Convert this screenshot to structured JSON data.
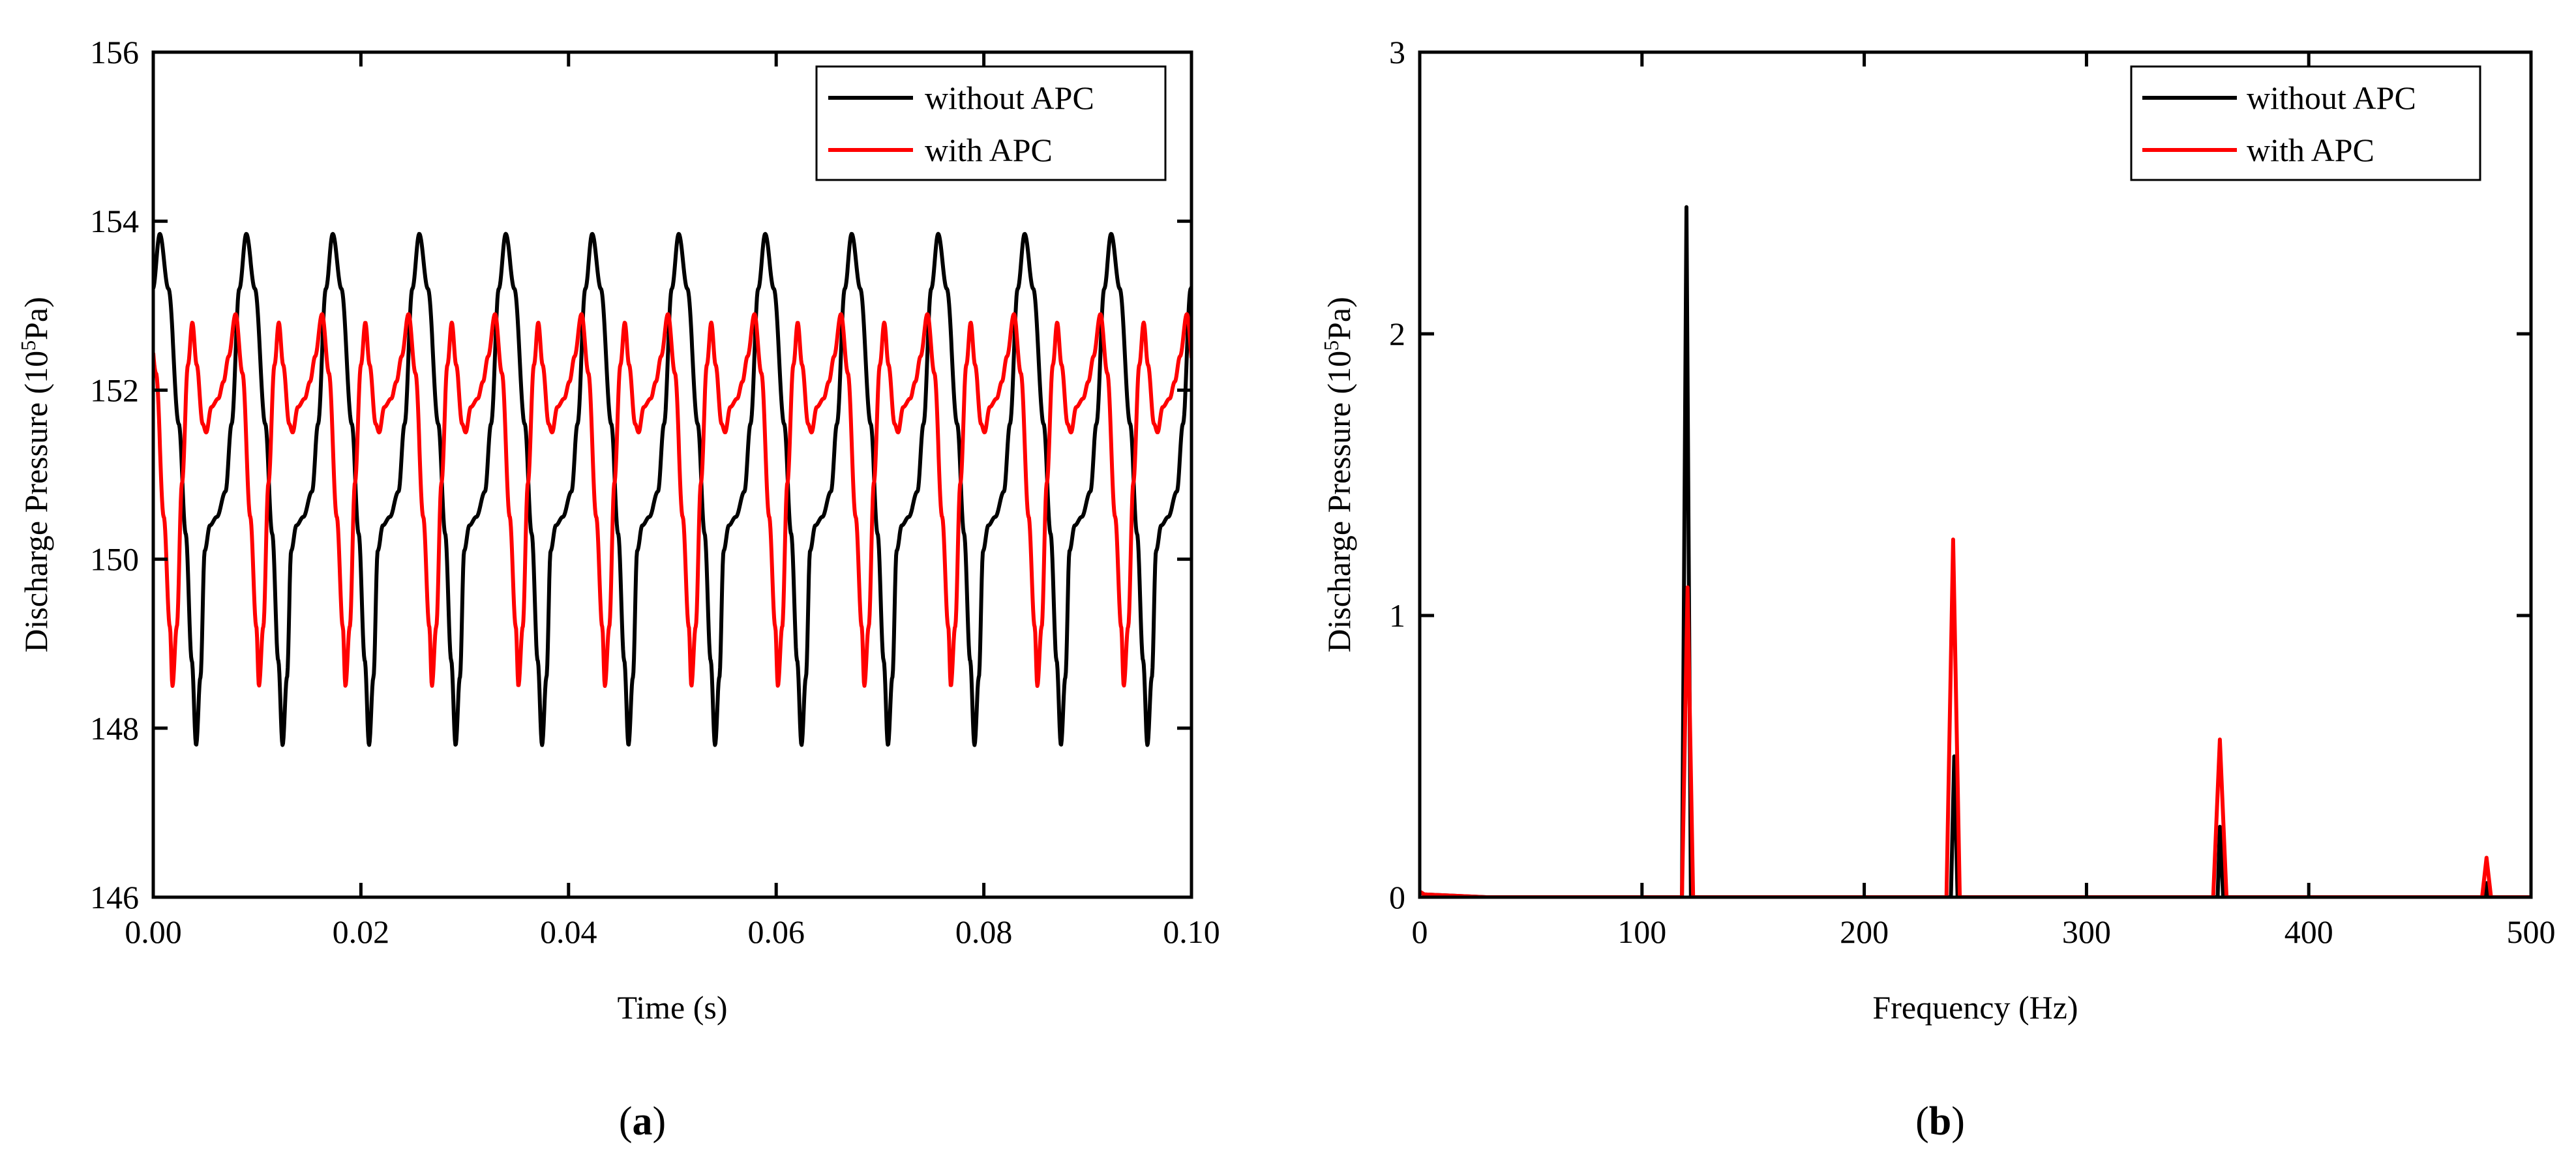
{
  "figure": {
    "colors": {
      "axis": "#000000",
      "series_without": "#000000",
      "series_with": "#ff0000"
    }
  },
  "chart_data": [
    {
      "id": "a",
      "type": "line",
      "caption": "(a)",
      "caption_letter": "a",
      "xlabel": "Time (s)",
      "ylabel": "Discharge Pressure (10⁵Pa)",
      "xlim": [
        0,
        0.1
      ],
      "ylim": [
        146,
        156
      ],
      "xticks": [
        0,
        0.02,
        0.04,
        0.06,
        0.08,
        0.1
      ],
      "xtick_labels": [
        "0.00",
        "0.02",
        "0.04",
        "0.06",
        "0.08",
        "0.10"
      ],
      "yticks": [
        146,
        148,
        150,
        152,
        154,
        156
      ],
      "ytick_labels": [
        "146",
        "148",
        "150",
        "152",
        "154",
        "156"
      ],
      "legend_position": "top-right",
      "series": [
        {
          "name": "without APC",
          "color": "#000000",
          "period": 0.00833,
          "phase": 0.0077,
          "waveform": [
            [
              0,
              153.85
            ],
            [
              0.1,
              153.2
            ],
            [
              0.22,
              151.6
            ],
            [
              0.3,
              150.3
            ],
            [
              0.37,
              148.8
            ],
            [
              0.42,
              147.8
            ],
            [
              0.47,
              148.6
            ],
            [
              0.52,
              150.1
            ],
            [
              0.58,
              150.4
            ],
            [
              0.66,
              150.5
            ],
            [
              0.76,
              150.8
            ],
            [
              0.83,
              151.6
            ],
            [
              0.92,
              153.2
            ],
            [
              1.0,
              153.85
            ]
          ]
        },
        {
          "name": "with APC",
          "color": "#ff0000",
          "period": 0.00833,
          "phase": 0.0004,
          "waveform": [
            [
              0,
              152.9
            ],
            [
              0.08,
              152.2
            ],
            [
              0.17,
              150.5
            ],
            [
              0.24,
              149.2
            ],
            [
              0.27,
              148.5
            ],
            [
              0.32,
              149.2
            ],
            [
              0.38,
              150.9
            ],
            [
              0.45,
              152.3
            ],
            [
              0.5,
              152.8
            ],
            [
              0.55,
              152.3
            ],
            [
              0.62,
              151.6
            ],
            [
              0.66,
              151.5
            ],
            [
              0.72,
              151.8
            ],
            [
              0.8,
              151.9
            ],
            [
              0.86,
              152.1
            ],
            [
              0.92,
              152.4
            ],
            [
              1.0,
              152.9
            ]
          ]
        }
      ]
    },
    {
      "id": "b",
      "type": "line",
      "caption": "(b)",
      "caption_letter": "b",
      "xlabel": "Frequency (Hz)",
      "ylabel": "Discharge Pressure (10⁵Pa)",
      "xlim": [
        0,
        500
      ],
      "ylim": [
        0,
        3
      ],
      "xticks": [
        0,
        100,
        200,
        300,
        400,
        500
      ],
      "xtick_labels": [
        "0",
        "100",
        "200",
        "300",
        "400",
        "500"
      ],
      "yticks": [
        0,
        1,
        2,
        3
      ],
      "ytick_labels": [
        "0",
        "1",
        "2",
        "3"
      ],
      "legend_position": "top-right",
      "series": [
        {
          "name": "without APC",
          "color": "#000000",
          "points": [
            [
              0,
              0.02
            ],
            [
              2,
              0.01
            ],
            [
              30,
              0
            ],
            [
              118,
              0
            ],
            [
              120,
              2.45
            ],
            [
              122,
              0
            ],
            [
              239,
              0
            ],
            [
              240.5,
              0.5
            ],
            [
              242,
              0
            ],
            [
              359,
              0
            ],
            [
              360,
              0.25
            ],
            [
              361.5,
              0
            ],
            [
              479,
              0
            ],
            [
              480,
              0.05
            ],
            [
              481,
              0
            ],
            [
              500,
              0
            ]
          ]
        },
        {
          "name": "with APC",
          "color": "#ff0000",
          "points": [
            [
              0,
              0.02
            ],
            [
              2,
              0.01
            ],
            [
              30,
              0
            ],
            [
              118,
              0
            ],
            [
              120.5,
              1.1
            ],
            [
              123,
              0
            ],
            [
              237,
              0
            ],
            [
              240,
              1.27
            ],
            [
              243,
              0
            ],
            [
              357,
              0
            ],
            [
              360,
              0.56
            ],
            [
              363,
              0
            ],
            [
              478,
              0
            ],
            [
              480,
              0.14
            ],
            [
              482,
              0
            ],
            [
              500,
              0
            ]
          ]
        }
      ]
    }
  ]
}
